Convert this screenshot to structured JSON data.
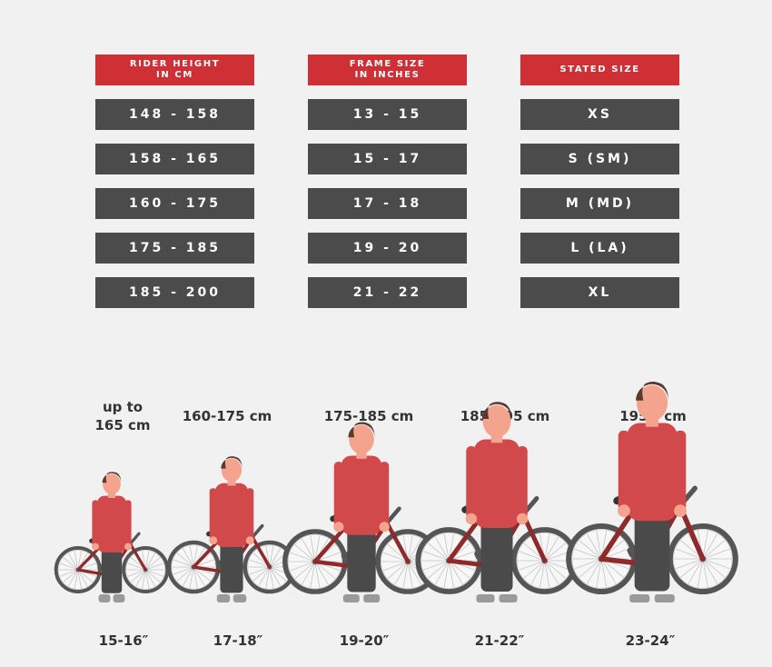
{
  "table": {
    "columns": [
      {
        "header": "RIDER HEIGHT\nIN CM",
        "values": [
          "148 - 158",
          "158 - 165",
          "160 - 175",
          "175 - 185",
          "185 - 200"
        ]
      },
      {
        "header": "FRAME SIZE\nIN INCHES",
        "values": [
          "13 - 15",
          "15 - 17",
          "17 - 18",
          "19 - 20",
          "21 - 22"
        ]
      },
      {
        "header": "STATED SIZE",
        "values": [
          "XS",
          "S (SM)",
          "M (MD)",
          "L (LA)",
          "XL"
        ]
      }
    ]
  },
  "riders": [
    {
      "height_label": "up to\n165 cm",
      "frame_label": "15-16″"
    },
    {
      "height_label": "160-175 cm",
      "frame_label": "17-18″"
    },
    {
      "height_label": "175-185 cm",
      "frame_label": "19-20″"
    },
    {
      "height_label": "185-195 cm",
      "frame_label": "21-22″"
    },
    {
      "height_label": "195+ cm",
      "frame_label": "23-24″"
    }
  ],
  "colors": {
    "header_red": "#cf3036",
    "cell_gray": "#4b4b4c",
    "shirt": "#d2494b",
    "frame": "#8e2a2c",
    "pants": "#4a4a4a",
    "hair": "#5b3a2e",
    "skin": "#f4a48e"
  }
}
